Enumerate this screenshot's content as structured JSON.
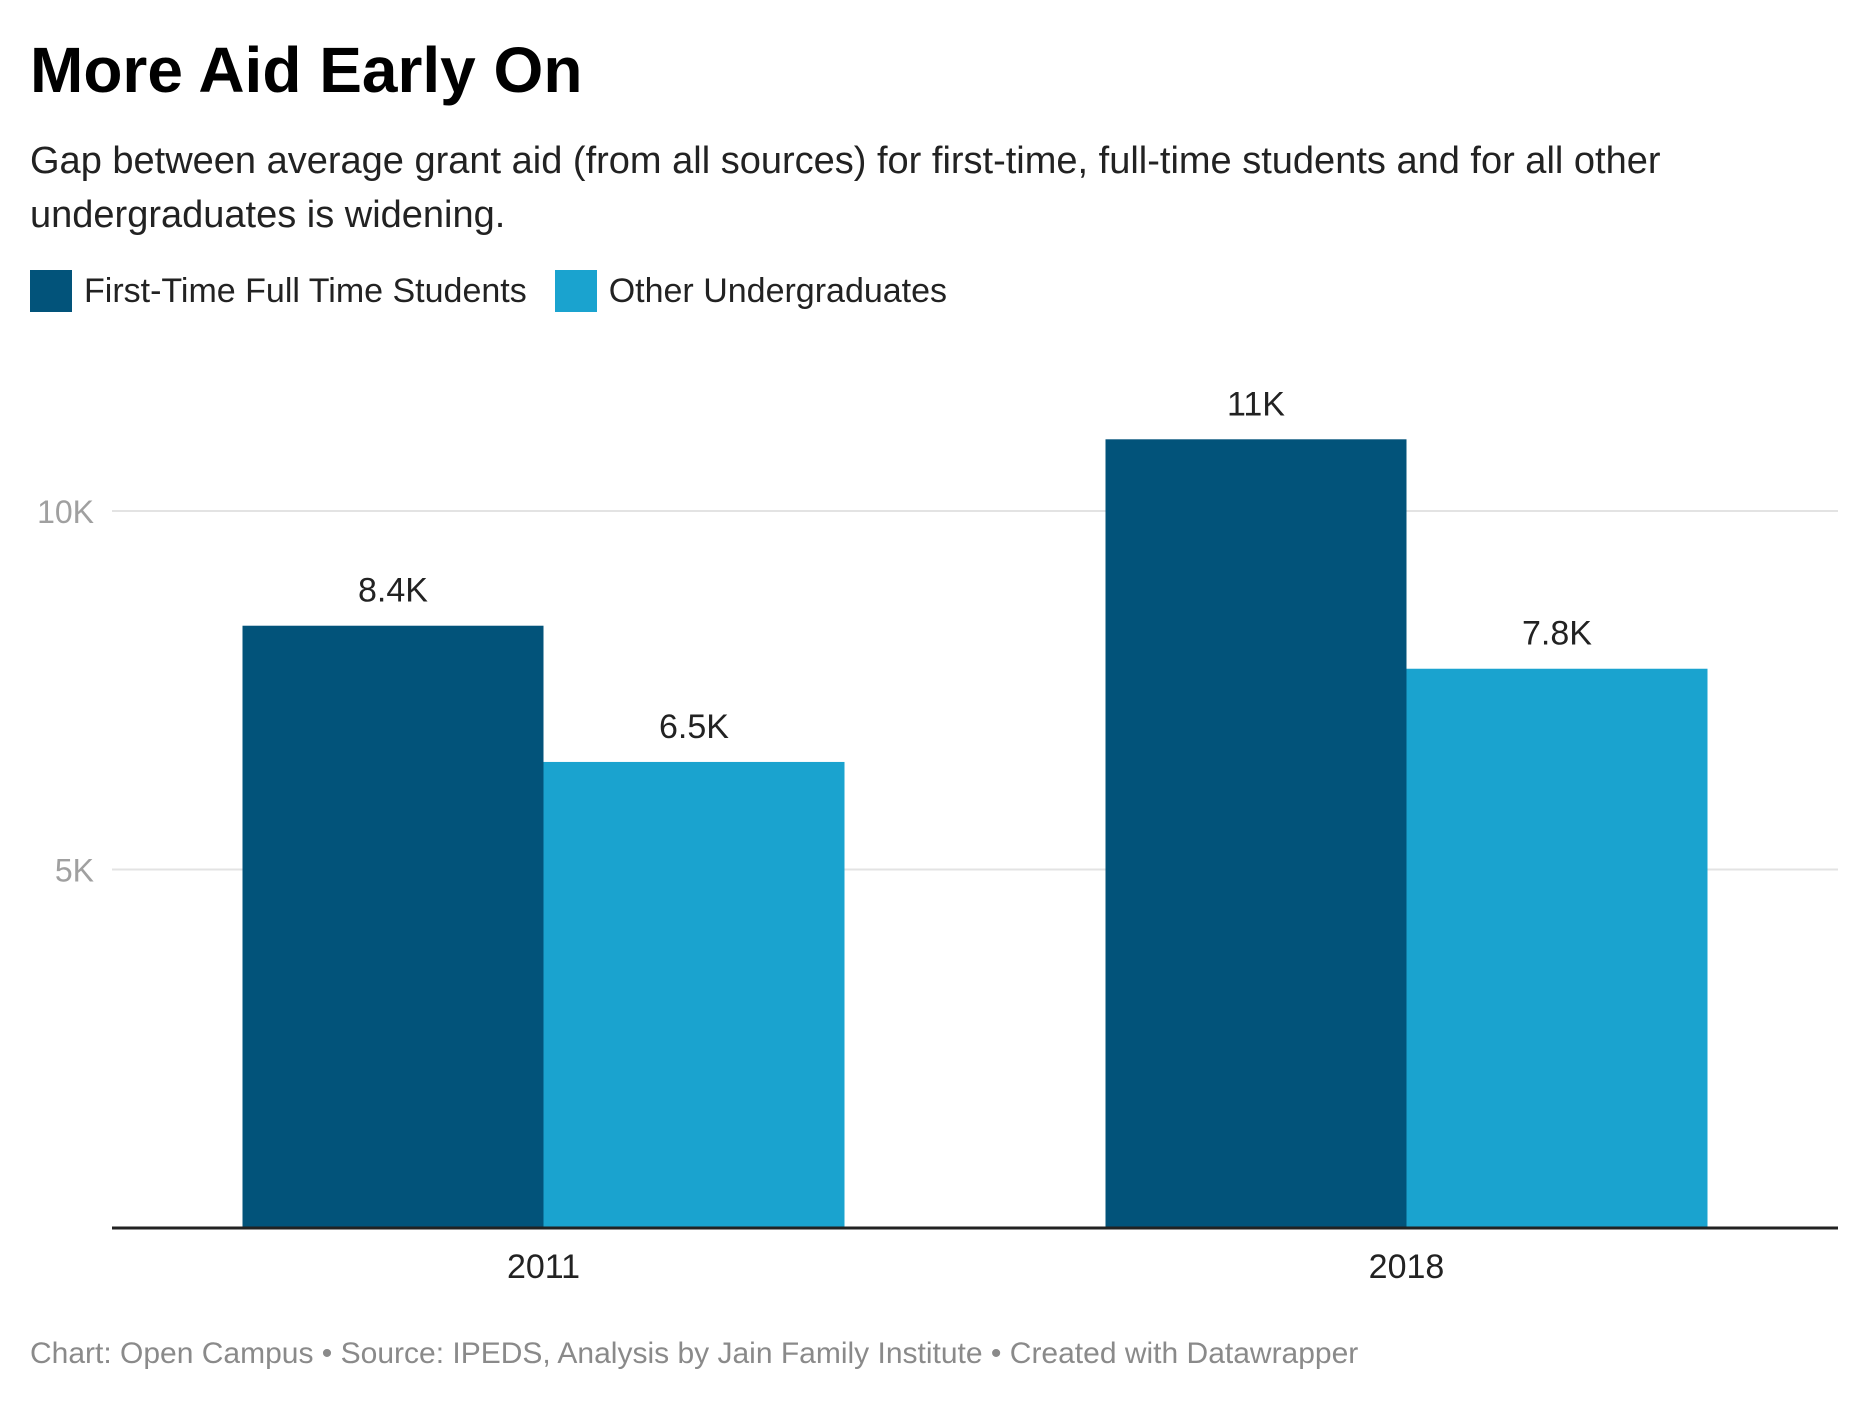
{
  "title": "More Aid Early On",
  "subtitle": "Gap between average grant aid (from all sources) for first-time, full-time students and for all other undergraduates is widening.",
  "legend": [
    {
      "label": "First-Time Full Time Students",
      "color": "#02537a"
    },
    {
      "label": "Other Undergraduates",
      "color": "#1aa3cf"
    }
  ],
  "footer": {
    "chart": "Chart: Open Campus",
    "source": "Source: IPEDS, Analysis by Jain Family Institute",
    "credit": "Created with Datawrapper",
    "separator": " • "
  },
  "chart_data": {
    "type": "bar",
    "title": "More Aid Early On",
    "categories": [
      "2011",
      "2018"
    ],
    "series": [
      {
        "name": "First-Time Full Time Students",
        "color": "#02537a",
        "values": [
          8400,
          11000
        ],
        "labels": [
          "8.4K",
          "11K"
        ]
      },
      {
        "name": "Other Undergraduates",
        "color": "#1aa3cf",
        "values": [
          6500,
          7800
        ],
        "labels": [
          "6.5K",
          "7.8K"
        ]
      }
    ],
    "yticks": [
      {
        "value": 5000,
        "label": "5K"
      },
      {
        "value": 10000,
        "label": "10K"
      }
    ],
    "ylim": [
      0,
      12000
    ],
    "xlabel": "",
    "ylabel": "",
    "grid": true,
    "legend_position": "top-left"
  }
}
